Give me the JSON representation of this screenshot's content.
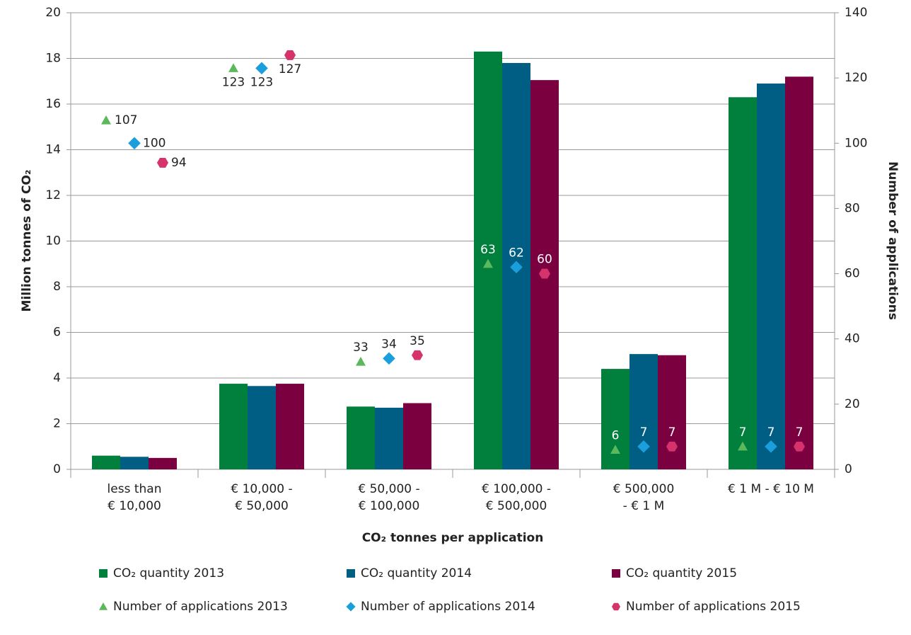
{
  "chart_data": {
    "type": "bar",
    "y_label": "Million tonnes of CO₂",
    "y2_label": "Number of applications",
    "x_label": "CO₂ tonnes per application",
    "categories": [
      [
        "less than",
        "€ 10,000"
      ],
      [
        "€ 10,000 -",
        "€ 50,000"
      ],
      [
        "€ 50,000 -",
        "€ 100,000"
      ],
      [
        "€ 100,000 -",
        "€ 500,000"
      ],
      [
        "€ 500,000",
        "-   € 1 M"
      ],
      [
        "€ 1 M - € 10 M"
      ]
    ],
    "series": [
      {
        "name": "CO₂ quantity 2013",
        "color": "#00803c",
        "values": [
          0.6,
          3.75,
          2.75,
          18.3,
          4.4,
          16.3
        ]
      },
      {
        "name": "CO₂ quantity 2014",
        "color": "#005e85",
        "values": [
          0.55,
          3.65,
          2.7,
          17.8,
          5.05,
          16.9
        ]
      },
      {
        "name": "CO₂ quantity 2015",
        "color": "#7b0040",
        "values": [
          0.5,
          3.75,
          2.9,
          17.05,
          5.0,
          17.2
        ]
      },
      {
        "name": "Number of applications 2013",
        "color": "#5cb85c",
        "axis": "y2",
        "marker": "triangle",
        "values": [
          107,
          123,
          33,
          63,
          6,
          7
        ]
      },
      {
        "name": "Number of applications 2014",
        "color": "#1a9fdc",
        "axis": "y2",
        "marker": "diamond",
        "values": [
          100,
          123,
          34,
          62,
          7,
          7
        ]
      },
      {
        "name": "Number of applications 2015",
        "color": "#d6336c",
        "axis": "y2",
        "marker": "hexagon",
        "values": [
          94,
          127,
          35,
          60,
          7,
          7
        ]
      }
    ],
    "ylim": [
      0,
      20
    ],
    "yticks": [
      0,
      2,
      4,
      6,
      8,
      10,
      12,
      14,
      16,
      18,
      20
    ],
    "y2lim": [
      0,
      140
    ],
    "y2ticks": [
      0,
      20,
      40,
      60,
      80,
      100,
      120,
      140
    ],
    "grid": true
  }
}
